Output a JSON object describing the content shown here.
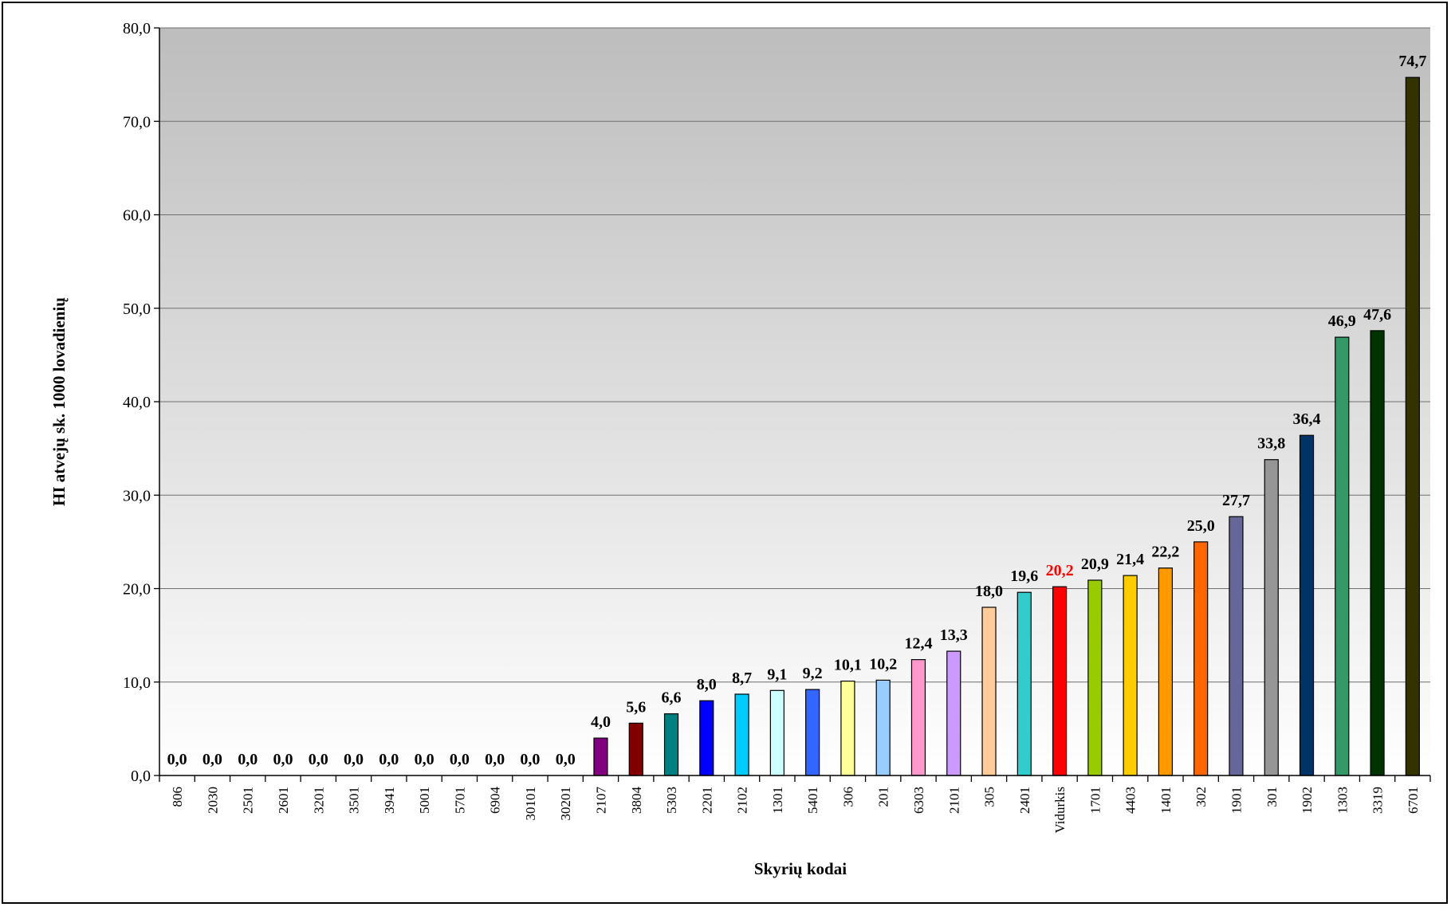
{
  "chart_data": {
    "type": "bar",
    "title": "",
    "xlabel": "Skyrių kodai",
    "ylabel": "HI atvejų sk. 1000 lovadienių",
    "ylim": [
      0,
      80
    ],
    "y_ticks": [
      "0,0",
      "10,0",
      "20,0",
      "30,0",
      "40,0",
      "50,0",
      "60,0",
      "70,0",
      "80,0"
    ],
    "grid": true,
    "legend": "none",
    "categories": [
      "806",
      "2030",
      "2501",
      "2601",
      "3201",
      "3501",
      "3941",
      "5001",
      "5701",
      "6904",
      "30101",
      "30201",
      "2107",
      "3804",
      "5303",
      "2201",
      "2102",
      "1301",
      "5401",
      "306",
      "201",
      "6303",
      "2101",
      "305",
      "2401",
      "Vidurkis",
      "1701",
      "4403",
      "1401",
      "302",
      "1901",
      "301",
      "1902",
      "1303",
      "3319",
      "6701"
    ],
    "values": [
      0.0,
      0.0,
      0.0,
      0.0,
      0.0,
      0.0,
      0.0,
      0.0,
      0.0,
      0.0,
      0.0,
      0.0,
      4.0,
      5.6,
      6.6,
      8.0,
      8.7,
      9.1,
      9.2,
      10.1,
      10.2,
      12.4,
      13.3,
      18.0,
      19.6,
      20.2,
      20.9,
      21.4,
      22.2,
      25.0,
      27.7,
      33.8,
      36.4,
      46.9,
      47.6,
      74.7
    ],
    "value_labels": [
      "0,0",
      "0,0",
      "0,0",
      "0,0",
      "0,0",
      "0,0",
      "0,0",
      "0,0",
      "0,0",
      "0,0",
      "0,0",
      "0,0",
      "4,0",
      "5,6",
      "6,6",
      "8,0",
      "8,7",
      "9,1",
      "9,2",
      "10,1",
      "10,2",
      "12,4",
      "13,3",
      "18,0",
      "19,6",
      "20,2",
      "20,9",
      "21,4",
      "22,2",
      "25,0",
      "27,7",
      "33,8",
      "36,4",
      "46,9",
      "47,6",
      "74,7"
    ],
    "bar_colors": [
      "#ffffff",
      "#ffffff",
      "#ffffff",
      "#ffffff",
      "#ffffff",
      "#ffffff",
      "#ffffff",
      "#ffffff",
      "#ffffff",
      "#ffffff",
      "#ffffff",
      "#ffffff",
      "#800080",
      "#800000",
      "#008080",
      "#0000ff",
      "#00ccff",
      "#ccffff",
      "#3366ff",
      "#ffff99",
      "#99ccff",
      "#ff99cc",
      "#cc99ff",
      "#ffcc99",
      "#33cccc",
      "#ff0000",
      "#99cc00",
      "#ffcc00",
      "#ff9900",
      "#ff6600",
      "#666699",
      "#969696",
      "#003366",
      "#339966",
      "#003300",
      "#333300"
    ],
    "highlight_category": "Vidurkis",
    "highlight_label_color": "#ff0000",
    "plot_background": "gradient grey to white"
  }
}
